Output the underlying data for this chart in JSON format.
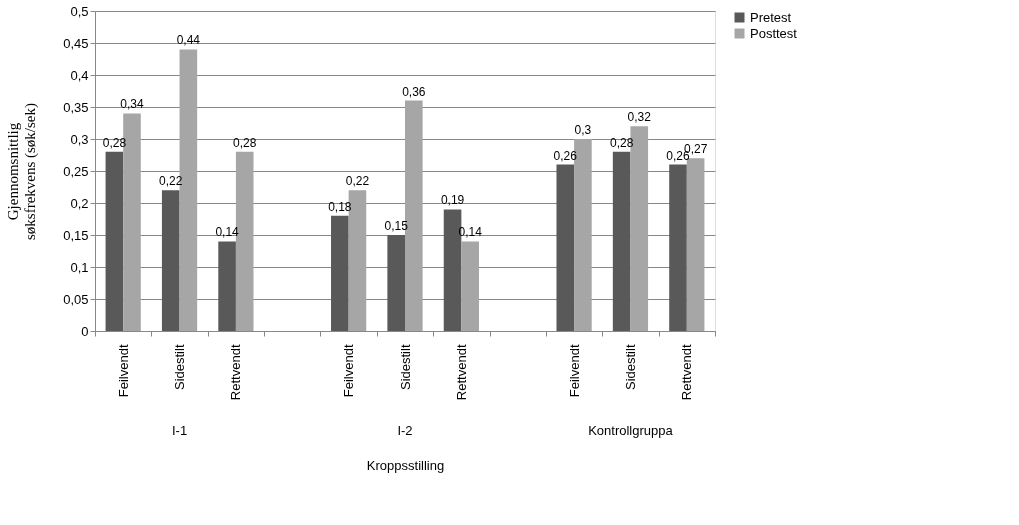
{
  "chart_data": {
    "type": "bar",
    "xlabel": "Kroppsstilling",
    "ylabel": "Gjennomsnittlig søksfrekvens (søk/sek)",
    "categories": [
      "Feilvendt",
      "Sidestilt",
      "Rettvendt",
      null,
      "Feilvendt",
      "Sidestilt",
      "Rettvendt",
      null,
      "Feilvendt",
      "Sidestilt",
      "Rettvendt"
    ],
    "annotations": [
      "I-1",
      "I-2",
      "Kontrollgruppa"
    ],
    "series": [
      {
        "name": "Pretest",
        "color": "#595959",
        "values": [
          0.28,
          0.22,
          0.14,
          null,
          0.18,
          0.15,
          0.19,
          null,
          0.26,
          0.28,
          0.26
        ],
        "value_labels": [
          "0,28",
          "0,22",
          "0,14",
          null,
          "0,18",
          "0,15",
          "0,19",
          null,
          "0,26",
          "0,28",
          "0,26"
        ]
      },
      {
        "name": "Posttest",
        "color": "#a6a6a6",
        "values": [
          0.34,
          0.44,
          0.28,
          null,
          0.22,
          0.36,
          0.14,
          null,
          0.3,
          0.32,
          0.27
        ],
        "value_labels": [
          "0,34",
          "0,44",
          "0,28",
          null,
          "0,22",
          "0,36",
          "0,14",
          null,
          "0,3",
          "0,32",
          "0,27"
        ]
      }
    ],
    "ylim": [
      0,
      0.5
    ],
    "yticks": [
      {
        "value": 0,
        "label": "0"
      },
      {
        "value": 0.05,
        "label": "0,05"
      },
      {
        "value": 0.1,
        "label": "0,1"
      },
      {
        "value": 0.15,
        "label": "0,15"
      },
      {
        "value": 0.2,
        "label": "0,2"
      },
      {
        "value": 0.25,
        "label": "0,25"
      },
      {
        "value": 0.3,
        "label": "0,3"
      },
      {
        "value": 0.35,
        "label": "0,35"
      },
      {
        "value": 0.4,
        "label": "0,4"
      },
      {
        "value": 0.45,
        "label": "0,45"
      },
      {
        "value": 0.5,
        "label": "0,5"
      }
    ],
    "grid": "y",
    "legend": "right"
  }
}
